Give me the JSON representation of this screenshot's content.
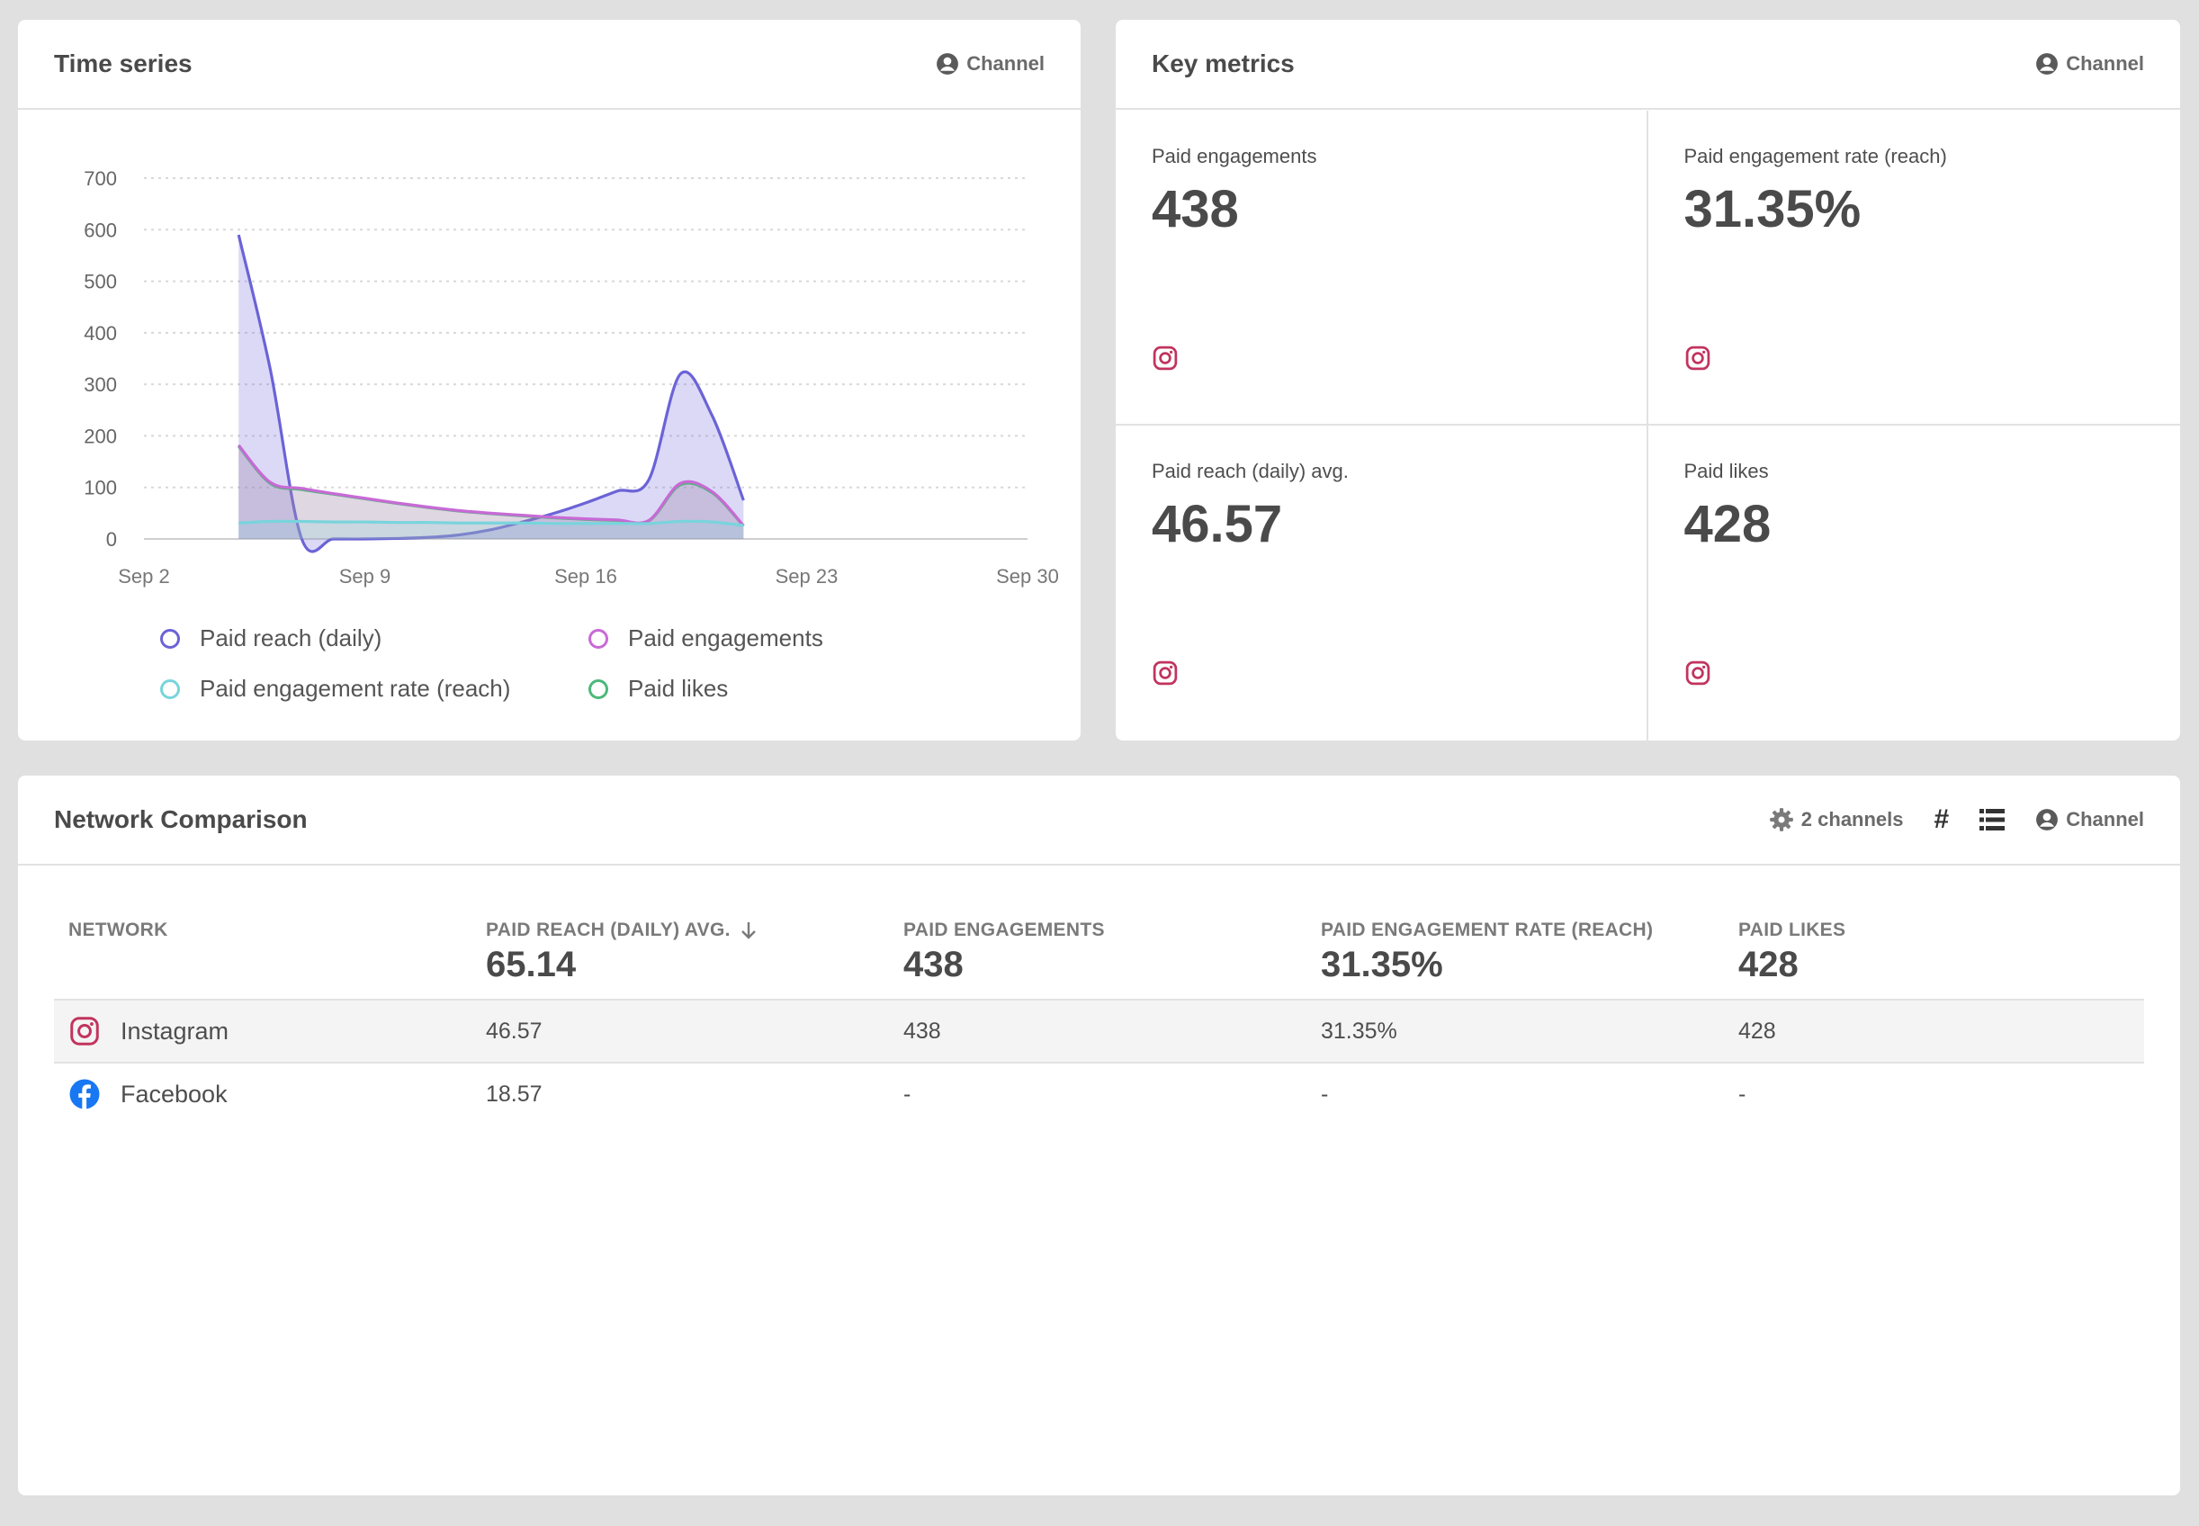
{
  "time_series": {
    "title": "Time series",
    "channel_label": "Channel",
    "legend": [
      {
        "label": "Paid reach (daily)",
        "color": "#6b63d6"
      },
      {
        "label": "Paid engagements",
        "color": "#c86ad6"
      },
      {
        "label": "Paid engagement rate (reach)",
        "color": "#78d4dc"
      },
      {
        "label": "Paid likes",
        "color": "#4cb87a"
      }
    ]
  },
  "chart_data": {
    "type": "area",
    "x_axis": {
      "ticks": [
        "Sep 2",
        "Sep 9",
        "Sep 16",
        "Sep 23",
        "Sep 30"
      ]
    },
    "y_axis": {
      "ticks": [
        0,
        100,
        200,
        300,
        400,
        500,
        600,
        700
      ],
      "range": [
        0,
        700
      ]
    },
    "grid": true,
    "legend_position": "bottom",
    "series": [
      {
        "name": "Paid reach (daily)",
        "color": "#6b63d6",
        "x": [
          "Sep 5",
          "Sep 6",
          "Sep 7",
          "Sep 8",
          "Sep 9",
          "Sep 10",
          "Sep 11",
          "Sep 12",
          "Sep 13",
          "Sep 14",
          "Sep 15",
          "Sep 16",
          "Sep 17",
          "Sep 18",
          "Sep 19",
          "Sep 20",
          "Sep 21"
        ],
        "values": [
          590,
          330,
          0,
          0,
          0,
          1,
          3,
          8,
          18,
          33,
          50,
          70,
          93,
          115,
          320,
          240,
          75
        ]
      },
      {
        "name": "Paid likes",
        "color": "#4cb87a",
        "x": [
          "Sep 5",
          "Sep 6",
          "Sep 7",
          "Sep 8",
          "Sep 9",
          "Sep 10",
          "Sep 11",
          "Sep 12",
          "Sep 13",
          "Sep 14",
          "Sep 15",
          "Sep 16",
          "Sep 17",
          "Sep 18",
          "Sep 19",
          "Sep 20",
          "Sep 21"
        ],
        "values": [
          180,
          108,
          96,
          87,
          78,
          69,
          61,
          54,
          49,
          45,
          41,
          38,
          36,
          35,
          105,
          90,
          25
        ]
      },
      {
        "name": "Paid engagements",
        "color": "#c86ad6",
        "x": [
          "Sep 5",
          "Sep 6",
          "Sep 7",
          "Sep 8",
          "Sep 9",
          "Sep 10",
          "Sep 11",
          "Sep 12",
          "Sep 13",
          "Sep 14",
          "Sep 15",
          "Sep 16",
          "Sep 17",
          "Sep 18",
          "Sep 19",
          "Sep 20",
          "Sep 21"
        ],
        "values": [
          182,
          110,
          98,
          88,
          79,
          70,
          62,
          55,
          50,
          46,
          42,
          39,
          37,
          36,
          108,
          92,
          26
        ]
      },
      {
        "name": "Paid engagement rate (reach)",
        "color": "#78d4dc",
        "x": [
          "Sep 5",
          "Sep 6",
          "Sep 7",
          "Sep 8",
          "Sep 9",
          "Sep 10",
          "Sep 11",
          "Sep 12",
          "Sep 13",
          "Sep 14",
          "Sep 15",
          "Sep 16",
          "Sep 17",
          "Sep 18",
          "Sep 19",
          "Sep 20",
          "Sep 21"
        ],
        "values": [
          31,
          34,
          34,
          33,
          33,
          32,
          32,
          31,
          31,
          31,
          30,
          30,
          30,
          30,
          34,
          33,
          26
        ]
      }
    ]
  },
  "key_metrics": {
    "title": "Key metrics",
    "channel_label": "Channel",
    "cells": [
      {
        "label": "Paid engagements",
        "value": "438",
        "icon": "instagram-icon"
      },
      {
        "label": "Paid engagement rate (reach)",
        "value": "31.35%",
        "icon": "instagram-icon"
      },
      {
        "label": "Paid reach (daily) avg.",
        "value": "46.57",
        "icon": "instagram-icon"
      },
      {
        "label": "Paid likes",
        "value": "428",
        "icon": "instagram-icon"
      }
    ]
  },
  "network_comparison": {
    "title": "Network Comparison",
    "channels_label": "2 channels",
    "hash_label": "#",
    "channel_label": "Channel",
    "columns": [
      {
        "label": "NETWORK",
        "total": ""
      },
      {
        "label": "PAID REACH (DAILY) AVG.",
        "total": "65.14"
      },
      {
        "label": "PAID ENGAGEMENTS",
        "total": "438"
      },
      {
        "label": "PAID ENGAGEMENT RATE (REACH)",
        "total": "31.35%"
      },
      {
        "label": "PAID LIKES",
        "total": "428"
      }
    ],
    "rows": [
      {
        "network": "Instagram",
        "icon": "instagram-icon",
        "cells": [
          "46.57",
          "438",
          "31.35%",
          "428"
        ]
      },
      {
        "network": "Facebook",
        "icon": "facebook-icon",
        "cells": [
          "18.57",
          "-",
          "-",
          "-"
        ]
      }
    ]
  },
  "colors": {
    "instagram": "#c1345e",
    "facebook": "#1877f2",
    "accent": "#6b63d6"
  }
}
